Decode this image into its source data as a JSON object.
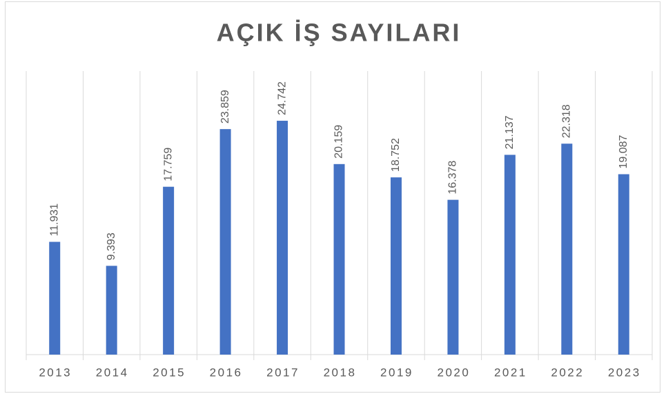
{
  "chart_data": {
    "type": "bar",
    "title": "AÇIK İŞ SAYILARI",
    "categories": [
      "2013",
      "2014",
      "2015",
      "2016",
      "2017",
      "2018",
      "2019",
      "2020",
      "2021",
      "2022",
      "2023"
    ],
    "values": [
      11931,
      9393,
      17759,
      23859,
      24742,
      20159,
      18752,
      16378,
      21137,
      22318,
      19087
    ],
    "value_labels": [
      "11.931",
      "9.393",
      "17.759",
      "23.859",
      "24.742",
      "20.159",
      "18.752",
      "16.378",
      "21.137",
      "22.318",
      "19.087"
    ],
    "color": "#4472c4",
    "ylim": [
      0,
      30000
    ],
    "grid": true
  }
}
